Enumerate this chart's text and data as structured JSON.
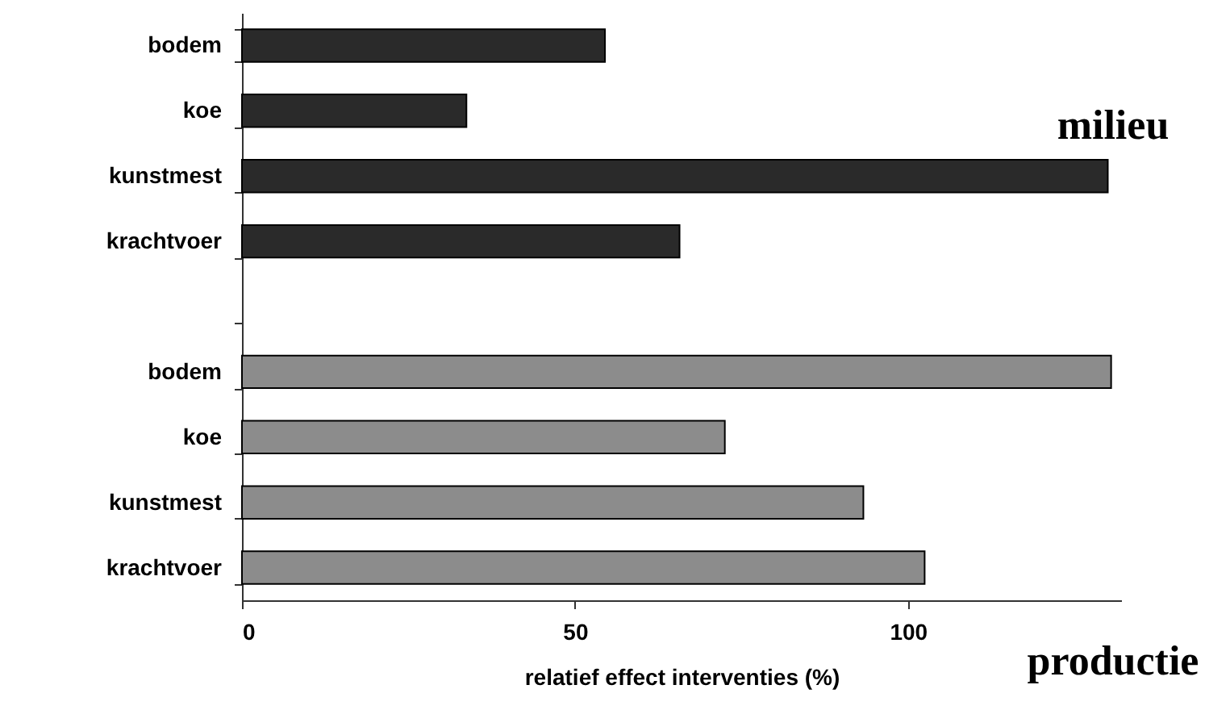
{
  "chart_data": {
    "type": "bar",
    "orientation": "horizontal",
    "xlabel": "relatief effect interventies (%)",
    "categories": [
      "bodem",
      "koe",
      "kunstmest",
      "krachtvoer",
      null,
      "bodem",
      "koe",
      "kunstmest",
      "krachtvoer"
    ],
    "series": [
      {
        "name": "milieu",
        "color": "#2a2a2a",
        "values": [
          54.5,
          33.7,
          130,
          65.7,
          null,
          null,
          null,
          null,
          null
        ]
      },
      {
        "name": "productie",
        "color": "#8c8c8c",
        "values": [
          null,
          null,
          null,
          null,
          null,
          130.5,
          72.5,
          93.3,
          102.5
        ]
      }
    ],
    "xlim": [
      0,
      132
    ],
    "xticks": [
      0,
      50,
      100
    ],
    "grid": false,
    "legend": false
  }
}
